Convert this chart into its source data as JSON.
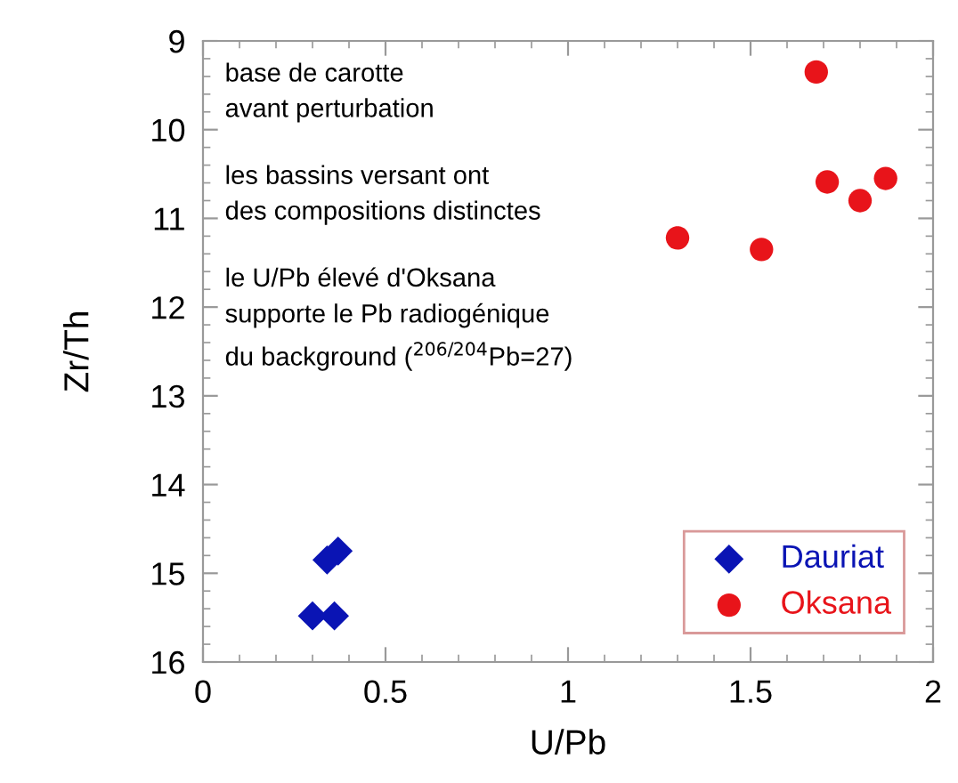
{
  "chart_data": {
    "type": "scatter",
    "xlabel": "U/Pb",
    "ylabel": "Zr/Th",
    "annotations": [
      "base de carotte\navant perturbation",
      "les bassins versant ont\ndes compositions distinctes",
      "le U/Pb élevé d'Oksana\nsupporte le Pb radiogénique\ndu background ($^{206/204}$Pb=27)"
    ],
    "series": [
      {
        "name": "Dauriat",
        "color": "#0a14b4",
        "marker": "diamond",
        "x": [
          0.3,
          0.36,
          0.34,
          0.37
        ],
        "values": [
          15.48,
          15.48,
          14.85,
          14.75
        ]
      },
      {
        "name": "Oksana",
        "color": "#e8141a",
        "marker": "circle",
        "x": [
          1.3,
          1.53,
          1.68,
          1.71,
          1.8,
          1.87
        ],
        "values": [
          11.22,
          11.35,
          9.35,
          10.59,
          10.8,
          10.55
        ]
      }
    ],
    "xlim": [
      0,
      2
    ],
    "xticks": [
      0,
      0.5,
      1,
      1.5,
      2
    ],
    "ylim": [
      16,
      9
    ],
    "yticks": [
      9,
      10,
      11,
      12,
      13,
      14,
      15,
      16
    ],
    "grid": false,
    "legend": "bottom right"
  }
}
